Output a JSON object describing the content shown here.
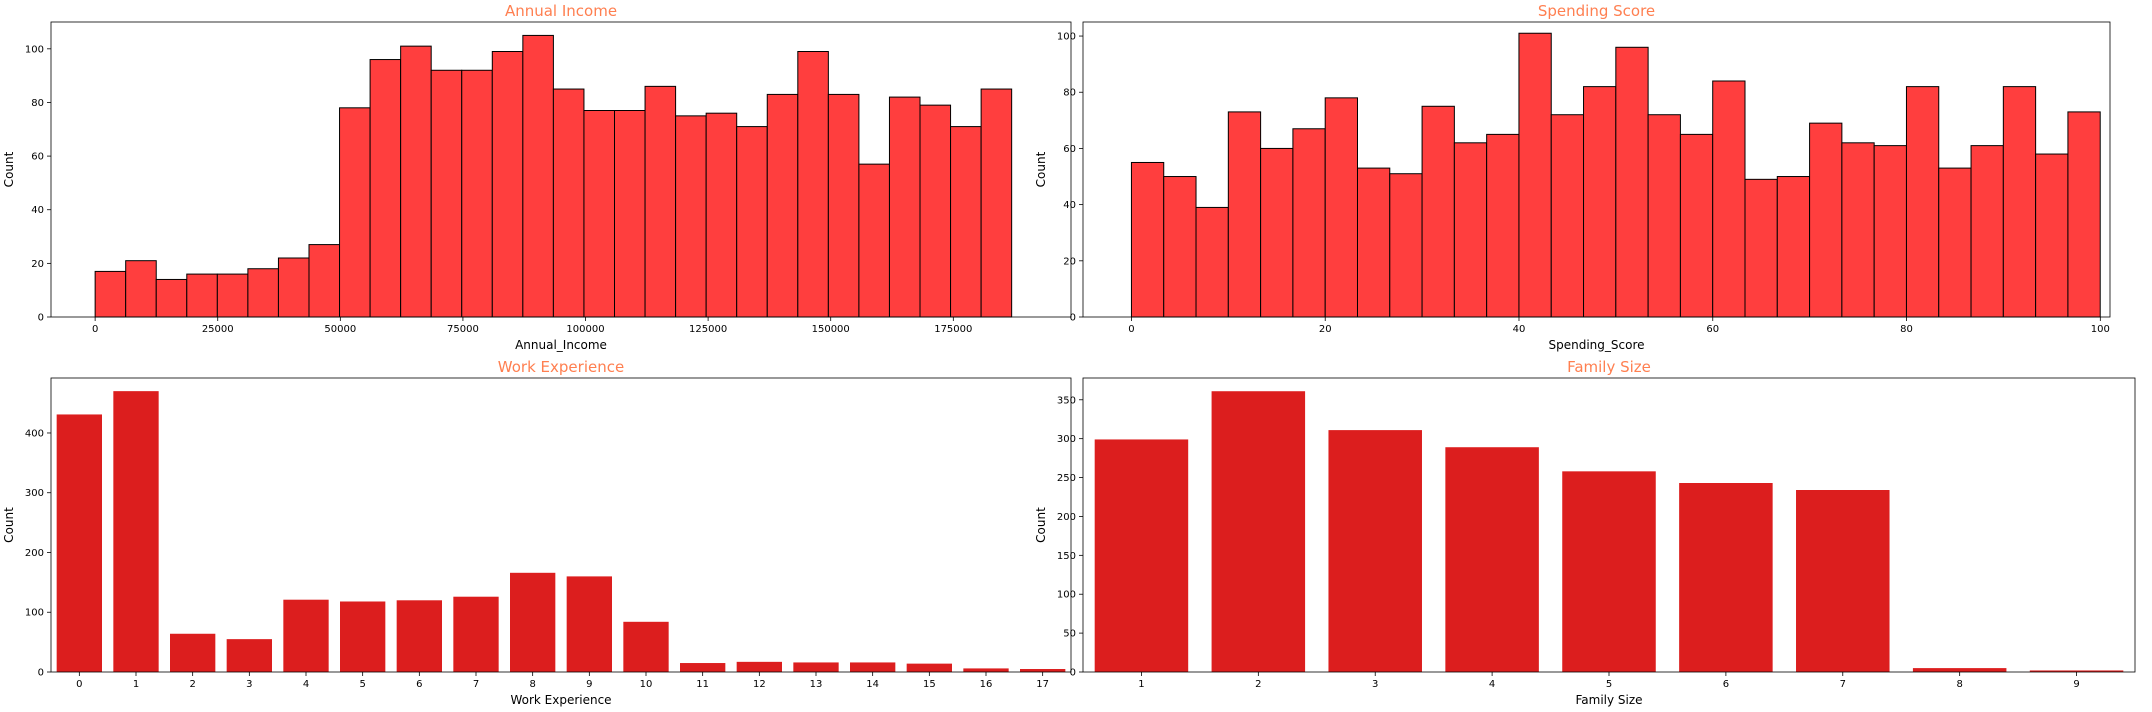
{
  "chart_data": [
    {
      "id": "annual-income",
      "type": "bar",
      "subtype": "histogram",
      "title": "Annual Income",
      "xlabel": "Annual_Income",
      "ylabel": "Count",
      "bin_start": 0,
      "bin_width": 6230,
      "values": [
        17,
        21,
        14,
        16,
        16,
        18,
        22,
        27,
        78,
        96,
        101,
        92,
        92,
        99,
        105,
        85,
        77,
        77,
        86,
        75,
        76,
        71,
        83,
        99,
        83,
        57,
        82,
        79,
        71,
        85
      ],
      "xlim": [
        -9000,
        199000
      ],
      "ylim": [
        0,
        110
      ],
      "xticks": [
        0,
        25000,
        50000,
        75000,
        100000,
        125000,
        150000,
        175000
      ],
      "yticks": [
        0,
        20,
        40,
        60,
        80,
        100
      ],
      "bar_color": "#ff3e3e",
      "edge_color": "#000000",
      "grid": false
    },
    {
      "id": "spending-score",
      "type": "bar",
      "subtype": "histogram",
      "title": "Spending Score",
      "xlabel": "Spending_Score",
      "ylabel": "Count",
      "bin_start": 0,
      "bin_width": 3.333,
      "values": [
        55,
        50,
        39,
        73,
        60,
        67,
        78,
        53,
        51,
        75,
        62,
        65,
        101,
        72,
        82,
        96,
        72,
        65,
        84,
        49,
        50,
        69,
        62,
        61,
        82,
        53,
        61,
        82,
        58,
        73
      ],
      "xlim": [
        -5,
        101
      ],
      "ylim": [
        0,
        105
      ],
      "xticks": [
        0,
        20,
        40,
        60,
        80,
        100
      ],
      "yticks": [
        0,
        20,
        40,
        60,
        80,
        100
      ],
      "bar_color": "#ff3e3e",
      "edge_color": "#000000",
      "grid": false
    },
    {
      "id": "work-experience",
      "type": "bar",
      "title": "Work Experience",
      "xlabel": "Work Experience",
      "ylabel": "Count",
      "categories": [
        "0",
        "1",
        "2",
        "3",
        "4",
        "5",
        "6",
        "7",
        "8",
        "9",
        "10",
        "11",
        "12",
        "13",
        "14",
        "15",
        "16",
        "17"
      ],
      "values": [
        431,
        470,
        64,
        55,
        121,
        118,
        120,
        126,
        166,
        160,
        84,
        15,
        17,
        16,
        16,
        14,
        6,
        5
      ],
      "ylim": [
        0,
        492
      ],
      "yticks": [
        0,
        100,
        200,
        300,
        400
      ],
      "bar_color": "#dc1e1e",
      "grid": false
    },
    {
      "id": "family-size",
      "type": "bar",
      "title": "Family Size",
      "xlabel": "Family Size",
      "ylabel": "Count",
      "categories": [
        "1",
        "2",
        "3",
        "4",
        "5",
        "6",
        "7",
        "8",
        "9"
      ],
      "values": [
        299,
        361,
        311,
        289,
        258,
        243,
        234,
        5,
        2
      ],
      "ylim": [
        0,
        378
      ],
      "yticks": [
        0,
        50,
        100,
        150,
        200,
        250,
        300,
        350
      ],
      "bar_color": "#dc1e1e",
      "grid": false
    }
  ]
}
